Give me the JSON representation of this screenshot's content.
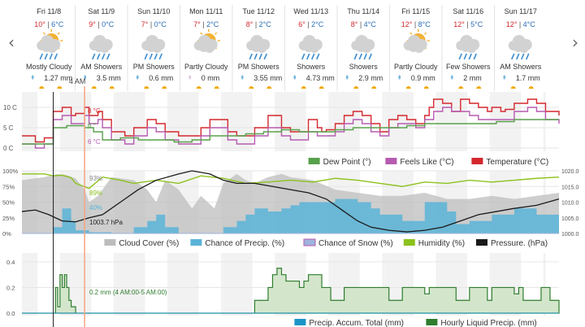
{
  "nav": {
    "prev": "‹",
    "next": "›"
  },
  "days": [
    {
      "date": "Fri 11/8",
      "hi": "10°",
      "lo": "6°C",
      "icon": "partly-cloudy-rain-icon",
      "cond": "Mostly Cloudy",
      "precip": "1.27 mm"
    },
    {
      "date": "Sat 11/9",
      "hi": "9°",
      "lo": "0°C",
      "icon": "rain-cloud-icon",
      "cond": "AM Showers",
      "precip": "3.5 mm"
    },
    {
      "date": "Sun 11/10",
      "hi": "7°",
      "lo": "0°C",
      "icon": "rain-cloud-icon",
      "cond": "PM Showers",
      "precip": "0.6 mm"
    },
    {
      "date": "Mon 11/11",
      "hi": "7°",
      "lo": "2°C",
      "icon": "partly-cloudy-icon",
      "cond": "Partly Cloudy",
      "precip": "0 mm"
    },
    {
      "date": "Tue 11/12",
      "hi": "8°",
      "lo": "2°C",
      "icon": "rain-cloud-icon",
      "cond": "PM Showers",
      "precip": "3.55 mm"
    },
    {
      "date": "Wed 11/13",
      "hi": "6°",
      "lo": "2°C",
      "icon": "rain-cloud-icon",
      "cond": "Showers",
      "precip": "4.73 mm"
    },
    {
      "date": "Thu 11/14",
      "hi": "8°",
      "lo": "4°C",
      "icon": "rain-cloud-icon",
      "cond": "Showers",
      "precip": "2.9 mm"
    },
    {
      "date": "Fri 11/15",
      "hi": "12°",
      "lo": "8°C",
      "icon": "partly-cloudy-icon",
      "cond": "Partly Cloudy",
      "precip": "0.9 mm"
    },
    {
      "date": "Sat 11/16",
      "hi": "12°",
      "lo": "5°C",
      "icon": "rain-cloud-icon",
      "cond": "Few Showers",
      "precip": "2 mm"
    },
    {
      "date": "Sun 11/17",
      "hi": "12°",
      "lo": "4°C",
      "icon": "rain-cloud-icon",
      "cond": "AM Showers",
      "precip": "1.7 mm"
    }
  ],
  "cursor": {
    "label": "4 AM"
  },
  "colors": {
    "temperature": "#d4282e",
    "feels_like": "#b65bb1",
    "dew_point": "#58a14b",
    "cloud": "#bdbdbd",
    "precip_chance": "#5ab4d8",
    "snow_chance": "#9fb3dd",
    "humidity": "#8cc21e",
    "pressure": "#1a1a1a",
    "accum": "#1b95c6",
    "hourly": "#2f7d2f",
    "hourly_fill": "#d3e6cb",
    "cursor": "#f4a582"
  },
  "chart_data": [
    {
      "type": "line",
      "x_unit": "hours from Fri 11/8 00:00",
      "x_range": [
        0,
        240
      ],
      "ylim": [
        0,
        13
      ],
      "y_ticks": [
        "0 C",
        "5 C",
        "10 C"
      ],
      "series": [
        {
          "name": "Temperature (°C)",
          "x": [
            0,
            5,
            6,
            10,
            14,
            18,
            22,
            24,
            28,
            30,
            34,
            36,
            40,
            46,
            50,
            56,
            60,
            64,
            70,
            72,
            76,
            80,
            84,
            88,
            92,
            96,
            100,
            104,
            110,
            116,
            120,
            124,
            128,
            132,
            134,
            136,
            140,
            144,
            148,
            152,
            156,
            160,
            164,
            168,
            172,
            176,
            180,
            182,
            184,
            188,
            192,
            196,
            200,
            204,
            208,
            210,
            214,
            216,
            220,
            226,
            230,
            234,
            240
          ],
          "values": [
            3,
            3,
            1.5,
            2.5,
            9,
            10,
            8,
            8.5,
            10,
            8,
            9,
            7,
            4,
            3,
            5,
            7,
            6,
            4,
            3,
            3,
            3,
            5,
            7,
            7,
            4,
            3,
            3,
            5,
            8,
            5,
            4,
            4,
            7,
            5,
            4,
            4.5,
            6,
            8,
            9,
            8,
            6,
            4,
            7,
            8,
            7,
            6,
            8,
            10,
            12,
            11,
            9,
            12,
            11,
            10,
            9,
            10,
            9,
            9.5,
            11,
            12,
            11,
            9,
            8
          ]
        },
        {
          "name": "Feels Like (°C)",
          "x": [
            0,
            5,
            6,
            10,
            14,
            18,
            22,
            24,
            28,
            30,
            34,
            36,
            40,
            46,
            50,
            56,
            60,
            64,
            70,
            72,
            76,
            80,
            84,
            88,
            92,
            96,
            100,
            104,
            110,
            116,
            120,
            124,
            128,
            132,
            136,
            140,
            144,
            148,
            152,
            156,
            160,
            164,
            168,
            172,
            176,
            180,
            184,
            188,
            192,
            196,
            200,
            204,
            208,
            212,
            216,
            220,
            226,
            230,
            234,
            240
          ],
          "values": [
            1,
            1,
            0,
            1,
            7,
            8,
            6,
            6,
            8,
            6,
            7,
            5,
            2,
            1,
            3,
            5,
            4,
            2,
            1,
            1,
            1,
            3,
            5,
            5,
            2,
            1,
            1,
            3,
            5,
            3,
            2,
            2,
            4,
            3,
            3,
            4,
            6,
            7,
            6,
            4,
            3,
            5,
            6,
            6,
            5,
            7,
            9,
            10,
            9,
            9,
            8,
            7,
            7,
            7,
            7,
            9,
            10,
            9,
            7,
            6
          ]
        },
        {
          "name": "Dew Point (°)",
          "x": [
            0,
            8,
            14,
            20,
            28,
            32,
            36,
            44,
            52,
            60,
            68,
            76,
            84,
            92,
            100,
            108,
            116,
            124,
            132,
            140,
            148,
            156,
            164,
            172,
            180,
            188,
            196,
            204,
            212,
            220,
            228,
            234,
            240
          ],
          "values": [
            1,
            1,
            5,
            5.5,
            5,
            4,
            2,
            2.5,
            2,
            2,
            1.5,
            2,
            3,
            3,
            3.5,
            4,
            4.5,
            4,
            4,
            4.5,
            5,
            5,
            5,
            5.5,
            6,
            6,
            6,
            6,
            6.5,
            7,
            7,
            7,
            7
          ]
        }
      ],
      "annotations": [
        "8 °C",
        "6 °",
        "6 °C"
      ],
      "legend_position": "bottom-right"
    },
    {
      "type": "area",
      "x_unit": "hours from Fri 11/8 00:00",
      "x_range": [
        0,
        240
      ],
      "ylim": [
        0,
        100
      ],
      "y_ticks": [
        "0%",
        "25%",
        "50%",
        "75%",
        "100%"
      ],
      "y2_ticks": [
        "1000.0",
        "1005.0",
        "1010.0",
        "1015.0",
        "1020.0"
      ],
      "y2lim": [
        1000,
        1020
      ],
      "series": [
        {
          "name": "Cloud Cover (%)",
          "x": [
            0,
            10,
            16,
            20,
            24,
            28,
            30,
            34,
            40,
            50,
            56,
            60,
            64,
            70,
            76,
            80,
            86,
            90,
            96,
            100,
            104,
            110,
            116,
            120,
            130,
            140,
            150,
            160,
            170,
            180,
            190,
            200,
            210,
            220,
            230,
            240
          ],
          "values": [
            85,
            90,
            95,
            93,
            88,
            70,
            50,
            60,
            90,
            85,
            70,
            50,
            85,
            70,
            40,
            60,
            40,
            80,
            95,
            85,
            80,
            90,
            95,
            90,
            85,
            70,
            65,
            60,
            60,
            65,
            55,
            55,
            60,
            55,
            60,
            65
          ]
        },
        {
          "name": "Chance of Precip. (%)",
          "x": [
            0,
            10,
            14,
            18,
            22,
            24,
            28,
            30,
            40,
            50,
            56,
            60,
            64,
            70,
            76,
            80,
            86,
            90,
            96,
            100,
            104,
            110,
            116,
            120,
            124,
            130,
            140,
            150,
            156,
            160,
            170,
            180,
            190,
            194,
            200,
            210,
            220,
            230,
            240
          ],
          "values": [
            0,
            0,
            10,
            40,
            20,
            5,
            5,
            2,
            0,
            10,
            20,
            30,
            10,
            0,
            0,
            0,
            0,
            10,
            20,
            30,
            40,
            35,
            40,
            45,
            50,
            50,
            55,
            50,
            40,
            30,
            20,
            50,
            35,
            15,
            20,
            30,
            40,
            30,
            20
          ]
        },
        {
          "name": "Chance of Snow (%)",
          "x": [
            0,
            240
          ],
          "values": [
            0,
            0
          ]
        },
        {
          "name": "Humidity (%)",
          "x": [
            0,
            10,
            14,
            18,
            22,
            24,
            30,
            36,
            44,
            50,
            60,
            70,
            80,
            90,
            100,
            110,
            120,
            130,
            140,
            150,
            160,
            170,
            180,
            190,
            200,
            210,
            220,
            230,
            240
          ],
          "values": [
            95,
            95,
            92,
            93,
            89,
            80,
            72,
            90,
            85,
            80,
            85,
            80,
            92,
            88,
            80,
            82,
            85,
            82,
            88,
            85,
            80,
            75,
            82,
            80,
            85,
            82,
            85,
            88,
            90
          ]
        },
        {
          "name": "Pressure. (hPa)",
          "axis": "right",
          "x": [
            0,
            6,
            12,
            18,
            24,
            30,
            36,
            44,
            52,
            60,
            70,
            76,
            84,
            90,
            96,
            104,
            112,
            120,
            128,
            136,
            144,
            150,
            156,
            164,
            172,
            180,
            188,
            196,
            204,
            212,
            220,
            230,
            240
          ],
          "values": [
            1007,
            1007.5,
            1006,
            1004,
            1003.7,
            1005,
            1006,
            1010,
            1014,
            1017,
            1019,
            1020,
            1019,
            1017,
            1016,
            1016,
            1015,
            1014,
            1013,
            1011,
            1007,
            1004,
            1002,
            1001,
            1000.5,
            1001,
            1002,
            1004,
            1006,
            1007,
            1008,
            1009,
            1011
          ]
        }
      ],
      "annotations": [
        "93%",
        "89%",
        "40%",
        "1003.7 hPa"
      ],
      "legend_position": "bottom"
    },
    {
      "type": "area",
      "x_unit": "hours from Fri 11/8 00:00",
      "x_range": [
        0,
        240
      ],
      "ylim": [
        0,
        0.45
      ],
      "y_ticks": [
        "0.0",
        "0.2",
        "0.4"
      ],
      "series": [
        {
          "name": "Precip. Accum. Total (mm)",
          "x": [
            0,
            240
          ],
          "values": [
            0,
            0
          ]
        },
        {
          "name": "Hourly Liquid Precip. (mm)",
          "x": [
            0,
            14,
            15,
            16,
            17,
            18,
            19,
            20,
            21,
            22,
            24,
            26,
            28,
            36,
            60,
            64,
            70,
            100,
            104,
            110,
            112,
            114,
            116,
            118,
            124,
            126,
            128,
            134,
            136,
            138,
            144,
            152,
            160,
            164,
            170,
            180,
            182,
            188,
            194,
            200,
            206,
            208,
            210,
            218,
            220,
            222,
            224,
            228,
            232,
            234,
            236,
            240
          ],
          "values": [
            0,
            0,
            0.2,
            0.05,
            0.3,
            0.2,
            0.3,
            0.2,
            0.1,
            0.05,
            0,
            0,
            0,
            0,
            0,
            0,
            0,
            0,
            0.1,
            0.2,
            0.3,
            0.35,
            0.3,
            0.25,
            0.2,
            0.25,
            0.3,
            0.2,
            0.2,
            0.1,
            0.2,
            0.2,
            0.2,
            0.1,
            0.2,
            0.15,
            0.2,
            0.2,
            0.1,
            0.2,
            0.2,
            0.1,
            0.2,
            0.2,
            0.15,
            0.2,
            0.1,
            0.1,
            0.2,
            0.2,
            0.1,
            0
          ]
        }
      ],
      "annotations": [
        "0.2 mm (4 AM:00-5 AM:00)"
      ],
      "legend_position": "bottom-right"
    }
  ]
}
